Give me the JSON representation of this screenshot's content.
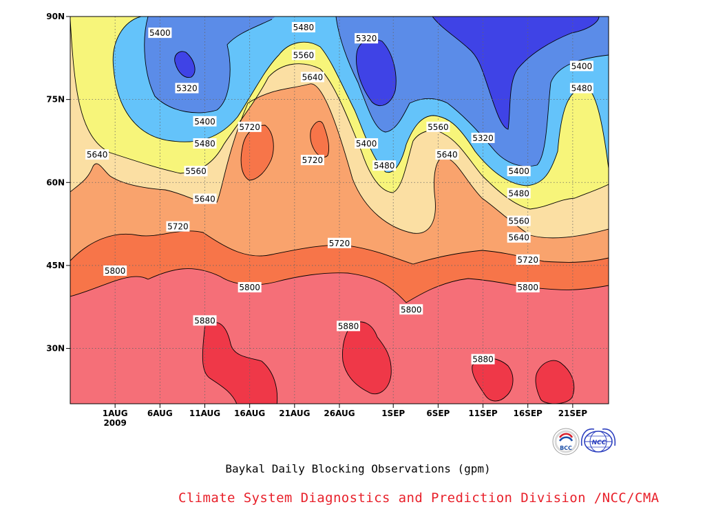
{
  "chart_data": {
    "type": "heatmap",
    "subtype": "filled-contour (latitude-time Hovmoller)",
    "title": "Baykal Daily Blocking Observations (gpm)",
    "x_axis": {
      "ticks": [
        "1AUG",
        "6AUG",
        "11AUG",
        "16AUG",
        "21AUG",
        "26AUG",
        "1SEP",
        "6SEP",
        "11SEP",
        "16SEP",
        "21SEP"
      ],
      "tick_day_offsets": [
        0,
        5,
        10,
        15,
        20,
        25,
        31,
        36,
        41,
        46,
        51
      ],
      "range": [
        "2009-07-27",
        "2009-09-25"
      ],
      "year_label": "2009"
    },
    "y_axis": {
      "ticks": [
        30,
        45,
        60,
        75,
        90
      ],
      "tick_labels": [
        "30N",
        "45N",
        "60N",
        "75N",
        "90N"
      ],
      "range": [
        20,
        90
      ]
    },
    "grid": true,
    "contour_levels": [
      5320,
      5400,
      5480,
      5560,
      5640,
      5720,
      5800,
      5880
    ],
    "bands": [
      {
        "range": "<5320",
        "color": "#3f43e6"
      },
      {
        "range": "5320-5400",
        "color": "#5b8ce8"
      },
      {
        "range": "5400-5480",
        "color": "#64c3fa"
      },
      {
        "range": "5480-5560",
        "color": "#f7f57a"
      },
      {
        "range": "5560-5640",
        "color": "#fbdfa3"
      },
      {
        "range": "5640-5720",
        "color": "#f9a36d"
      },
      {
        "range": "5720-5800",
        "color": "#f77549"
      },
      {
        "range": "5800-5880",
        "color": "#f56f78"
      },
      {
        "range": ">5880",
        "color": "#ef3848"
      }
    ],
    "contours": [
      {
        "value": 5320,
        "labels": [
          {
            "date": "2009-08-09",
            "lat": 77
          },
          {
            "date": "2009-08-29",
            "lat": 86
          },
          {
            "date": "2009-09-11",
            "lat": 68
          }
        ]
      },
      {
        "value": 5400,
        "labels": [
          {
            "date": "2009-08-06",
            "lat": 87
          },
          {
            "date": "2009-08-11",
            "lat": 71
          },
          {
            "date": "2009-08-29",
            "lat": 67
          },
          {
            "date": "2009-09-15",
            "lat": 62
          },
          {
            "date": "2009-09-22",
            "lat": 81
          }
        ]
      },
      {
        "value": 5480,
        "labels": [
          {
            "date": "2009-08-11",
            "lat": 67
          },
          {
            "date": "2009-08-22",
            "lat": 88
          },
          {
            "date": "2009-08-31",
            "lat": 63
          },
          {
            "date": "2009-09-15",
            "lat": 58
          },
          {
            "date": "2009-09-22",
            "lat": 77
          }
        ]
      },
      {
        "value": 5560,
        "labels": [
          {
            "date": "2009-08-10",
            "lat": 62
          },
          {
            "date": "2009-08-22",
            "lat": 83
          },
          {
            "date": "2009-09-06",
            "lat": 70
          },
          {
            "date": "2009-09-15",
            "lat": 53
          }
        ]
      },
      {
        "value": 5640,
        "labels": [
          {
            "date": "2009-07-30",
            "lat": 65
          },
          {
            "date": "2009-08-11",
            "lat": 57
          },
          {
            "date": "2009-08-23",
            "lat": 79
          },
          {
            "date": "2009-09-07",
            "lat": 65
          },
          {
            "date": "2009-09-15",
            "lat": 50
          }
        ]
      },
      {
        "value": 5720,
        "labels": [
          {
            "date": "2009-08-08",
            "lat": 52
          },
          {
            "date": "2009-08-16",
            "lat": 70
          },
          {
            "date": "2009-08-23",
            "lat": 64
          },
          {
            "date": "2009-08-26",
            "lat": 49
          },
          {
            "date": "2009-09-16",
            "lat": 46
          }
        ]
      },
      {
        "value": 5800,
        "labels": [
          {
            "date": "2009-08-01",
            "lat": 44
          },
          {
            "date": "2009-08-16",
            "lat": 41
          },
          {
            "date": "2009-09-03",
            "lat": 37
          },
          {
            "date": "2009-09-16",
            "lat": 41
          }
        ]
      },
      {
        "value": 5880,
        "labels": [
          {
            "date": "2009-08-11",
            "lat": 35
          },
          {
            "date": "2009-08-27",
            "lat": 34
          },
          {
            "date": "2009-09-11",
            "lat": 28
          }
        ]
      }
    ]
  },
  "caption": "Baykal Daily Blocking Observations (gpm)",
  "credit": "Climate System Diagnostics and Prediction Division /NCC/CMA",
  "logos": [
    {
      "name": "bcc-logo",
      "text": "BCC",
      "colors": [
        "#d81e2a",
        "#1c4fa8"
      ]
    },
    {
      "name": "ncc-logo",
      "text": "NCC",
      "colors": [
        "#2c3fbf"
      ]
    }
  ]
}
